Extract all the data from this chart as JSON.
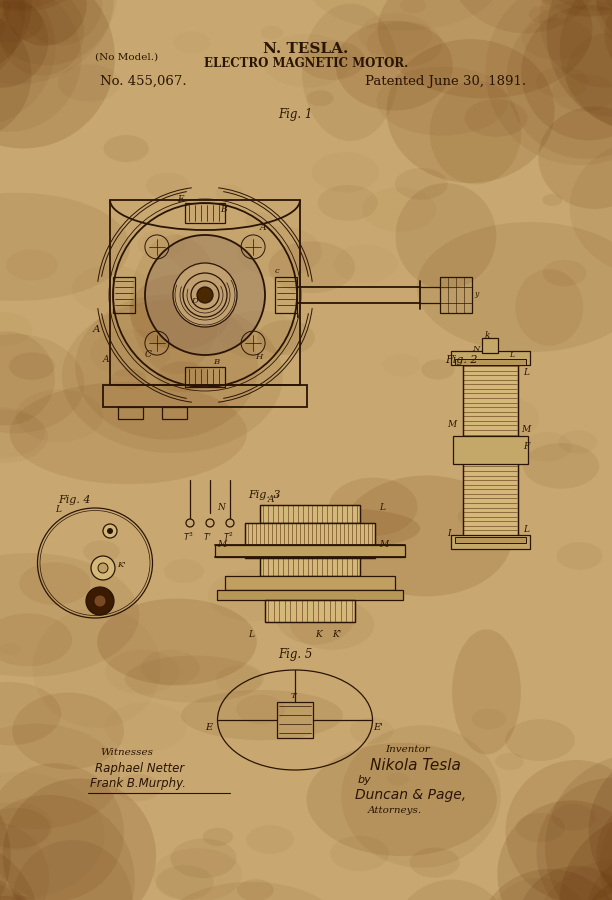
{
  "bg_color_base": "#c8a870",
  "bg_color_dark": "#8b6030",
  "ink_color": "#2a1505",
  "title_line1": "N. TESLA.",
  "title_line2": "ELECTRO MAGNETIC MOTOR.",
  "patent_no": "No. 455,067.",
  "patent_date": "Patented June 30, 1891.",
  "no_model": "(No Model.)",
  "fig1_label": "Fig. 1",
  "fig2_label": "Fig. 2",
  "fig3_label": "Fig. 3",
  "fig4_label": "Fig. 4",
  "fig5_label": "Fig. 5",
  "witnesses_label": "Witnesses",
  "inventor_label": "Inventor",
  "witness1": "Raphael Netter",
  "witness2": "Frank B.Murphy.",
  "inventor_sig": "Nikola Tesla",
  "attorney_by": "by",
  "attorney_sig": "Duncan & Page,",
  "attorneys": "Attorneys."
}
